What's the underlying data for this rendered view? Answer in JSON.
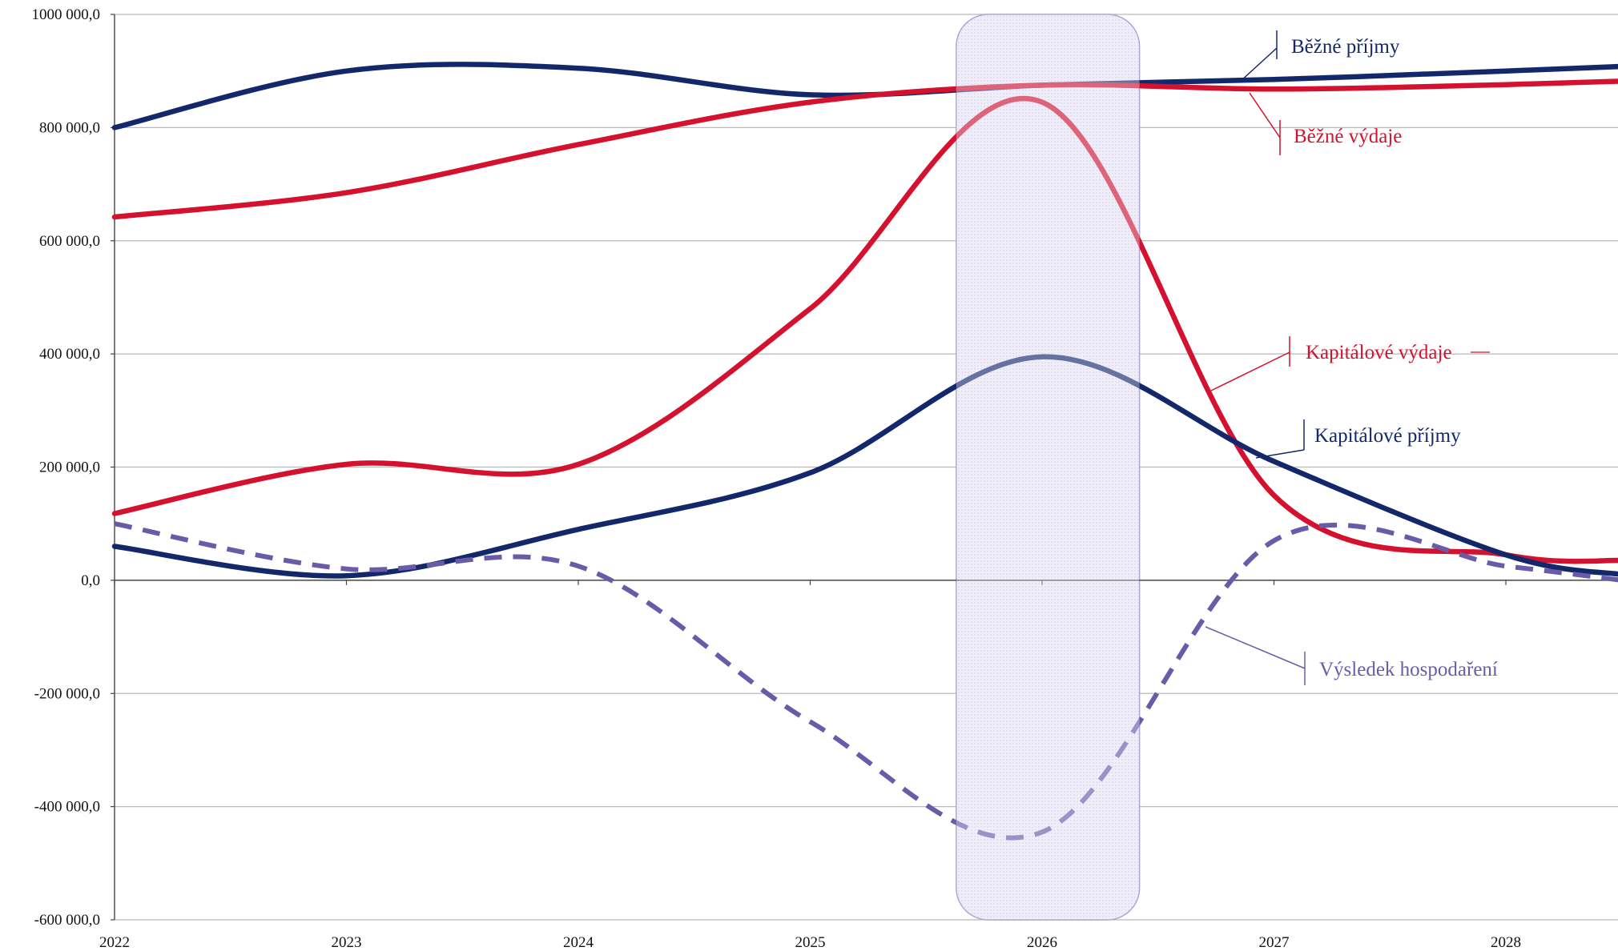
{
  "chart_data": {
    "type": "line",
    "title": "",
    "xlabel": "",
    "ylabel": "",
    "x": [
      2022,
      2023,
      2024,
      2025,
      2026,
      2027,
      2028,
      2028.5
    ],
    "x_ticks": [
      "2022",
      "2023",
      "2024",
      "2025",
      "2026",
      "2027",
      "2028"
    ],
    "y_ticks": [
      "1000 000,0",
      "800 000,0",
      "600 000,0",
      "400 000,0",
      "200 000,0",
      "0,0",
      "-200 000,0",
      "-400 000,0",
      "-600 000,0"
    ],
    "ylim": [
      -600000,
      1000000
    ],
    "xlim": [
      2022,
      2028.5
    ],
    "grid": "horizontal",
    "highlight_band": [
      2025.63,
      2026.42
    ],
    "series": [
      {
        "name": "Běžné příjmy",
        "color": "#13286a",
        "dashed": false,
        "values": [
          800000,
          900000,
          905000,
          858000,
          875000,
          885000,
          900000,
          908000
        ]
      },
      {
        "name": "Běžné výdaje",
        "color": "#d4112e",
        "dashed": false,
        "values": [
          642000,
          685000,
          770000,
          845000,
          875000,
          868000,
          876000,
          882000
        ]
      },
      {
        "name": "Kapitálové výdaje",
        "color": "#d4112e",
        "dashed": false,
        "values": [
          118000,
          205000,
          205000,
          480000,
          845000,
          150000,
          45000,
          35000
        ]
      },
      {
        "name": "Kapitálové příjmy",
        "color": "#13286a",
        "dashed": false,
        "values": [
          60000,
          8000,
          90000,
          190000,
          395000,
          210000,
          45000,
          10000
        ]
      },
      {
        "name": "Výsledek hospodaření",
        "color": "#6a5ba8",
        "dashed": true,
        "values": [
          100000,
          20000,
          25000,
          -250000,
          -445000,
          70000,
          25000,
          0
        ]
      }
    ]
  }
}
